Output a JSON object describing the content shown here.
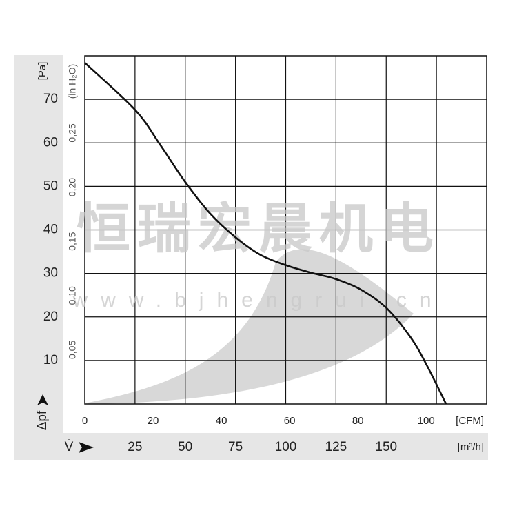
{
  "chart_data": {
    "type": "line",
    "y_label": "Δpf",
    "y_unit": "[Pa]",
    "y2_unit": "(in H₂O)",
    "x_label": "V̇",
    "x_unit": "[m³/h]",
    "x2_unit": "[CFM]",
    "annotations": [
      "恒瑞宏晨机电",
      "www.bjhengrui.cn"
    ],
    "xlim": [
      0,
      200
    ],
    "xticks": [
      25,
      50,
      75,
      100,
      125,
      150,
      {
        "value": 175,
        "label": null
      }
    ],
    "x2lim": [
      0,
      117.72
    ],
    "x2ticks": [
      0,
      20,
      40,
      60,
      80,
      100
    ],
    "ylim": [
      0,
      80
    ],
    "yticks": [
      10,
      20,
      30,
      40,
      50,
      60,
      70
    ],
    "y2lim": [
      0,
      0.3212
    ],
    "y2ticks": [
      {
        "value": 0.05,
        "label": "0,05"
      },
      {
        "value": 0.1,
        "label": "0,10"
      },
      {
        "value": 0.15,
        "label": "0,15"
      },
      {
        "value": 0.2,
        "label": "0,20"
      },
      {
        "value": 0.25,
        "label": "0,25"
      }
    ],
    "grid": true,
    "series": [
      {
        "color": "#111111",
        "x": [
          0,
          25,
          37.3,
          50,
          62.3,
          75,
          87.3,
          100,
          112.3,
          125,
          137.3,
          150,
          162.3,
          170.2,
          179.8
        ],
        "values": [
          78.4,
          67.6,
          59.7,
          51,
          43.8,
          38.3,
          34.3,
          31.9,
          30.2,
          28.7,
          26.3,
          22.1,
          15.2,
          8.9,
          0
        ]
      }
    ]
  }
}
